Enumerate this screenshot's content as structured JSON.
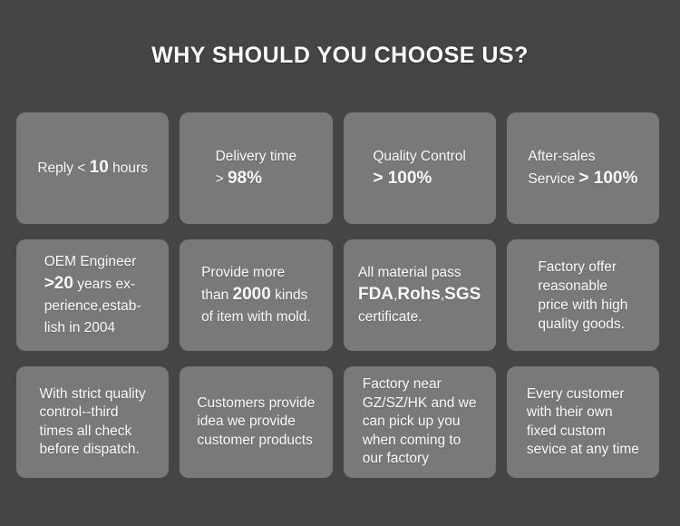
{
  "title": "WHY SHOULD YOU CHOOSE US?",
  "colors": {
    "background": "#464444",
    "card": "#7a7878",
    "text": "#fafafa",
    "title": "#ffffff"
  },
  "cards": [
    {
      "name": "reply-time",
      "lines": [
        [
          {
            "t": "Reply < "
          },
          {
            "t": "10",
            "b": true
          },
          {
            "t": " hours"
          }
        ]
      ]
    },
    {
      "name": "delivery-time",
      "lines": [
        [
          {
            "t": "Delivery time"
          }
        ],
        [
          {
            "t": "> "
          },
          {
            "t": "98%",
            "b": true
          }
        ]
      ]
    },
    {
      "name": "quality-control",
      "lines": [
        [
          {
            "t": "Quality Control"
          }
        ],
        [
          {
            "t": "> 100%",
            "b": true
          }
        ]
      ]
    },
    {
      "name": "after-sales-service",
      "lines": [
        [
          {
            "t": "After-sales"
          }
        ],
        [
          {
            "t": "Service "
          },
          {
            "t": "> 100%",
            "b": true
          }
        ]
      ]
    },
    {
      "name": "oem-engineer",
      "lines": [
        [
          {
            "t": "OEM Engineer"
          }
        ],
        [
          {
            "t": ">20",
            "b": true
          },
          {
            "t": " years ex-"
          }
        ],
        [
          {
            "t": "perience,estab-"
          }
        ],
        [
          {
            "t": "lish in 2004"
          }
        ]
      ]
    },
    {
      "name": "item-kinds",
      "lines": [
        [
          {
            "t": "Provide more"
          }
        ],
        [
          {
            "t": "than "
          },
          {
            "t": "2000",
            "b": true
          },
          {
            "t": " kinds"
          }
        ],
        [
          {
            "t": "of item with mold."
          }
        ]
      ]
    },
    {
      "name": "certificates",
      "lines": [
        [
          {
            "t": "All material pass"
          }
        ],
        [
          {
            "t": "FDA",
            "b": true
          },
          {
            "t": ","
          },
          {
            "t": "Rohs",
            "b": true
          },
          {
            "t": ","
          },
          {
            "t": "SGS",
            "b": true
          }
        ],
        [
          {
            "t": "certificate."
          }
        ]
      ]
    },
    {
      "name": "reasonable-price",
      "lines": [
        [
          {
            "t": "Factory offer"
          }
        ],
        [
          {
            "t": "reasonable"
          }
        ],
        [
          {
            "t": "price with high"
          }
        ],
        [
          {
            "t": "quality goods."
          }
        ]
      ]
    },
    {
      "name": "strict-quality-control",
      "lines": [
        [
          {
            "t": "With strict quality"
          }
        ],
        [
          {
            "t": "control--third"
          }
        ],
        [
          {
            "t": "times all check"
          }
        ],
        [
          {
            "t": "before dispatch."
          }
        ]
      ]
    },
    {
      "name": "customer-idea",
      "lines": [
        [
          {
            "t": "Customers provide"
          }
        ],
        [
          {
            "t": "idea we provide"
          }
        ],
        [
          {
            "t": "customer products"
          }
        ]
      ]
    },
    {
      "name": "factory-location",
      "lines": [
        [
          {
            "t": "Factory near"
          }
        ],
        [
          {
            "t": "GZ/SZ/HK and we"
          }
        ],
        [
          {
            "t": "can pick up you"
          }
        ],
        [
          {
            "t": "when coming to"
          }
        ],
        [
          {
            "t": "our factory"
          }
        ]
      ]
    },
    {
      "name": "fixed-custom-service",
      "lines": [
        [
          {
            "t": "Every customer"
          }
        ],
        [
          {
            "t": "with their own"
          }
        ],
        [
          {
            "t": "fixed custom"
          }
        ],
        [
          {
            "t": "sevice at any time"
          }
        ]
      ]
    }
  ]
}
